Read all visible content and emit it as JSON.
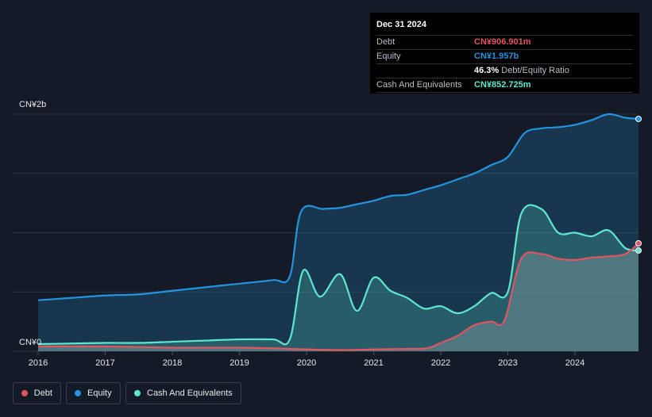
{
  "tooltip": {
    "date": "Dec 31 2024",
    "debt_label": "Debt",
    "debt_value": "CN¥906.901m",
    "equity_label": "Equity",
    "equity_value": "CN¥1.957b",
    "ratio_value": "46.3%",
    "ratio_label": "Debt/Equity Ratio",
    "cash_label": "Cash And Equivalents",
    "cash_value": "CN¥852.725m"
  },
  "legend": {
    "debt": "Debt",
    "equity": "Equity",
    "cash": "Cash And Equivalents"
  },
  "colors": {
    "debt": "#e05561",
    "equity": "#2394df",
    "cash": "#5ee6cf",
    "background": "#151b26"
  },
  "chart_data": {
    "type": "area",
    "y_unit": "CN¥ billions",
    "ylim": [
      0,
      2.0
    ],
    "y_tick_labels": [
      "CN¥0",
      "CN¥2b"
    ],
    "x_tick_labels": [
      "2016",
      "2017",
      "2018",
      "2019",
      "2020",
      "2021",
      "2022",
      "2023",
      "2024"
    ],
    "xlim": [
      2016.0,
      2025.0
    ],
    "series": [
      {
        "name": "Equity",
        "x": [
          2016.0,
          2016.5,
          2017.0,
          2017.5,
          2018.0,
          2018.5,
          2019.0,
          2019.5,
          2019.75,
          2019.92,
          2020.25,
          2020.5,
          2020.75,
          2021.0,
          2021.25,
          2021.5,
          2021.75,
          2022.0,
          2022.25,
          2022.5,
          2022.75,
          2023.0,
          2023.25,
          2023.5,
          2023.75,
          2024.0,
          2024.25,
          2024.5,
          2024.75,
          2025.0
        ],
        "values": [
          0.43,
          0.45,
          0.47,
          0.48,
          0.51,
          0.54,
          0.57,
          0.6,
          0.63,
          1.18,
          1.2,
          1.21,
          1.24,
          1.27,
          1.31,
          1.32,
          1.36,
          1.4,
          1.45,
          1.5,
          1.57,
          1.64,
          1.84,
          1.88,
          1.89,
          1.91,
          1.95,
          2.0,
          1.97,
          1.96
        ]
      },
      {
        "name": "Cash And Equivalents",
        "x": [
          2016.0,
          2016.5,
          2017.0,
          2017.5,
          2018.0,
          2018.5,
          2019.0,
          2019.5,
          2019.75,
          2019.95,
          2020.2,
          2020.5,
          2020.75,
          2021.0,
          2021.25,
          2021.5,
          2021.75,
          2022.0,
          2022.25,
          2022.5,
          2022.75,
          2023.0,
          2023.2,
          2023.5,
          2023.75,
          2024.0,
          2024.25,
          2024.5,
          2024.75,
          2025.0
        ],
        "values": [
          0.06,
          0.065,
          0.07,
          0.07,
          0.08,
          0.09,
          0.1,
          0.1,
          0.1,
          0.68,
          0.46,
          0.65,
          0.34,
          0.62,
          0.51,
          0.45,
          0.36,
          0.38,
          0.32,
          0.38,
          0.49,
          0.5,
          1.16,
          1.2,
          1.0,
          1.0,
          0.97,
          1.02,
          0.87,
          0.85
        ]
      },
      {
        "name": "Debt",
        "x": [
          2016.0,
          2016.5,
          2017.0,
          2017.5,
          2018.0,
          2018.5,
          2019.0,
          2019.5,
          2020.0,
          2020.5,
          2021.0,
          2021.5,
          2021.8,
          2022.0,
          2022.25,
          2022.5,
          2022.75,
          2022.95,
          2023.2,
          2023.5,
          2023.75,
          2024.0,
          2024.25,
          2024.5,
          2024.75,
          2025.0
        ],
        "values": [
          0.04,
          0.04,
          0.04,
          0.035,
          0.03,
          0.03,
          0.03,
          0.025,
          0.015,
          0.01,
          0.015,
          0.02,
          0.025,
          0.07,
          0.13,
          0.22,
          0.25,
          0.26,
          0.78,
          0.82,
          0.78,
          0.77,
          0.79,
          0.8,
          0.82,
          0.91
        ]
      }
    ],
    "grid": true
  }
}
